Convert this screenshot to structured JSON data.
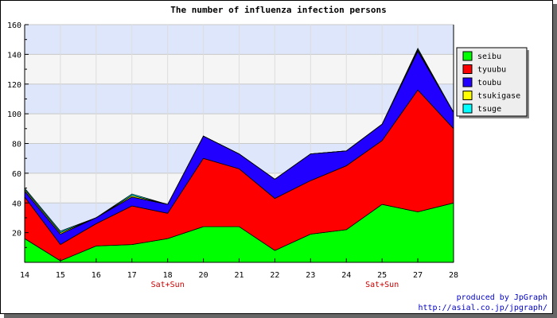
{
  "chart_data": {
    "type": "area",
    "stacked": true,
    "title": "The number of influenza infection persons",
    "xlabel": "",
    "ylabel": "",
    "x": [
      "14",
      "15",
      "16",
      "17",
      "18",
      "20",
      "21",
      "22",
      "23",
      "24",
      "25",
      "27",
      "28"
    ],
    "x_sublabels": [
      "",
      "",
      "",
      "",
      "Sat+Sun",
      "",
      "",
      "",
      "",
      "",
      "Sat+Sun",
      "",
      ""
    ],
    "ylim": [
      0,
      160
    ],
    "yticks": [
      20,
      40,
      60,
      80,
      100,
      120,
      140,
      160
    ],
    "grid": true,
    "legend_position": "top-right",
    "series": [
      {
        "name": "seibu",
        "color": "#00ff00",
        "values": [
          16,
          1,
          11,
          12,
          16,
          24,
          24,
          8,
          19,
          22,
          39,
          34,
          40
        ]
      },
      {
        "name": "tyuubu",
        "color": "#ff0000",
        "values": [
          28,
          11,
          15,
          26,
          17,
          46,
          39,
          35,
          36,
          43,
          43,
          82,
          50
        ]
      },
      {
        "name": "toubu",
        "color": "#2200ff",
        "values": [
          4,
          7,
          4,
          6,
          6,
          15,
          10,
          13,
          18,
          10,
          11,
          26,
          11
        ]
      },
      {
        "name": "tsukigase",
        "color": "#ffff00",
        "values": [
          1,
          1,
          0,
          1,
          0,
          0,
          0,
          0,
          0,
          0,
          0,
          1,
          0
        ]
      },
      {
        "name": "tsuge",
        "color": "#00ffff",
        "values": [
          1,
          1,
          0,
          1,
          0,
          0,
          0,
          0,
          0,
          0,
          0,
          1,
          0
        ]
      }
    ]
  },
  "footer": {
    "credit_line1": "produced by JpGraph",
    "credit_line2": "http://asial.co.jp/jpgraph/"
  }
}
